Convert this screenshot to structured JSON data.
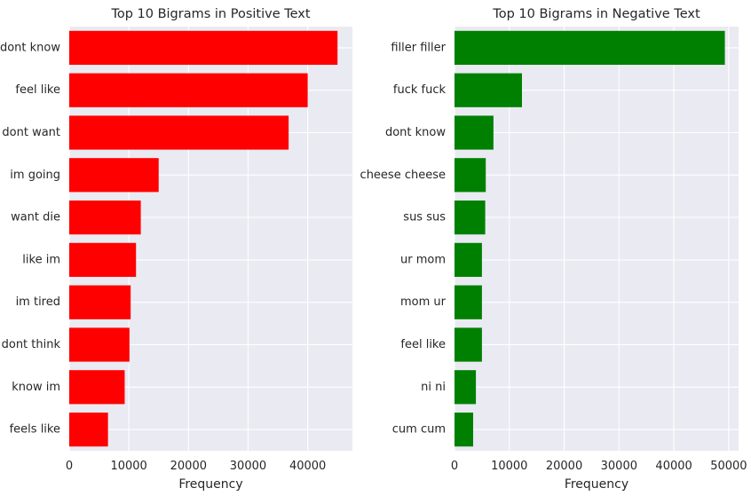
{
  "chart_data": [
    {
      "type": "bar",
      "orientation": "horizontal",
      "title": "Top 10 Bigrams in Positive Text",
      "xlabel": "Frequency",
      "ylabel": "",
      "color": "#ff0000",
      "categories": [
        "dont know",
        "feel like",
        "dont want",
        "im going",
        "want die",
        "like im",
        "im tired",
        "dont think",
        "know im",
        "feels like"
      ],
      "values": [
        45000,
        40000,
        36800,
        15000,
        12000,
        11200,
        10300,
        10100,
        9300,
        6500
      ],
      "xlim": [
        0,
        47500
      ],
      "xticks": [
        0,
        10000,
        20000,
        30000,
        40000
      ],
      "grid": true
    },
    {
      "type": "bar",
      "orientation": "horizontal",
      "title": "Top 10 Bigrams in Negative Text",
      "xlabel": "Frequency",
      "ylabel": "",
      "color": "#008000",
      "categories": [
        "filler filler",
        "fuck fuck",
        "dont know",
        "cheese cheese",
        "sus sus",
        "ur mom",
        "mom ur",
        "feel like",
        "ni ni",
        "cum cum"
      ],
      "values": [
        49300,
        12300,
        7100,
        5700,
        5600,
        5000,
        5000,
        5000,
        3900,
        3400
      ],
      "xlim": [
        0,
        51800
      ],
      "xticks": [
        0,
        10000,
        20000,
        30000,
        40000,
        50000
      ],
      "grid": true
    }
  ]
}
